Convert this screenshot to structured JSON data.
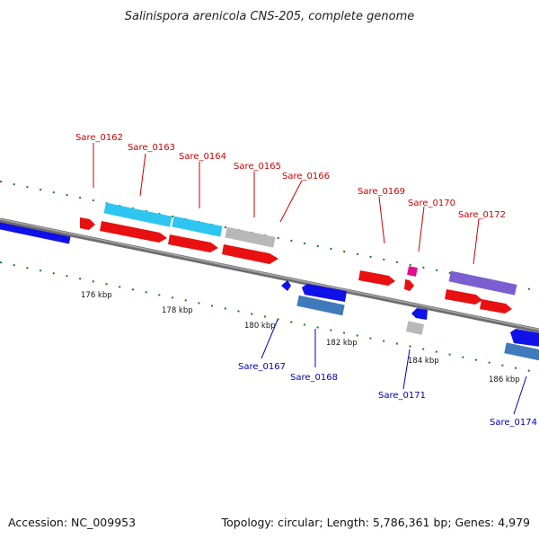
{
  "title": "Salinispora arenicola CNS-205, complete genome",
  "footer": {
    "accession": "Accession: NC_009953",
    "summary": "Topology: circular; Length: 5,786,361 bp; Genes: 4,979"
  },
  "colors": {
    "forward_label": "#cc0000",
    "reverse_label": "#0000bb",
    "tick": "#1a7a1a",
    "backbone": "#7a7a7a"
  },
  "ticks": [
    {
      "label": "176 kbp"
    },
    {
      "label": "178 kbp"
    },
    {
      "label": "180 kbp"
    },
    {
      "label": "182 kbp"
    },
    {
      "label": "184 kbp"
    },
    {
      "label": "186 kbp"
    }
  ],
  "genes_forward": [
    {
      "label": "Sare_0162",
      "color": "red"
    },
    {
      "label": "Sare_0163",
      "color": "cyan"
    },
    {
      "label": "Sare_0164",
      "color": "cyan"
    },
    {
      "label": "Sare_0165",
      "color": "gray"
    },
    {
      "label": "Sare_0166",
      "color": "red"
    },
    {
      "label": "Sare_0169",
      "color": "red"
    },
    {
      "label": "Sare_0170",
      "color": "magenta"
    },
    {
      "label": "Sare_0172",
      "color": "purple"
    }
  ],
  "genes_reverse": [
    {
      "label": "Sare_0167",
      "color": "blue"
    },
    {
      "label": "Sare_0168",
      "color": "steelblue"
    },
    {
      "label": "Sare_0171",
      "color": "gray"
    },
    {
      "label": "Sare_0174",
      "color": "steelblue"
    }
  ]
}
